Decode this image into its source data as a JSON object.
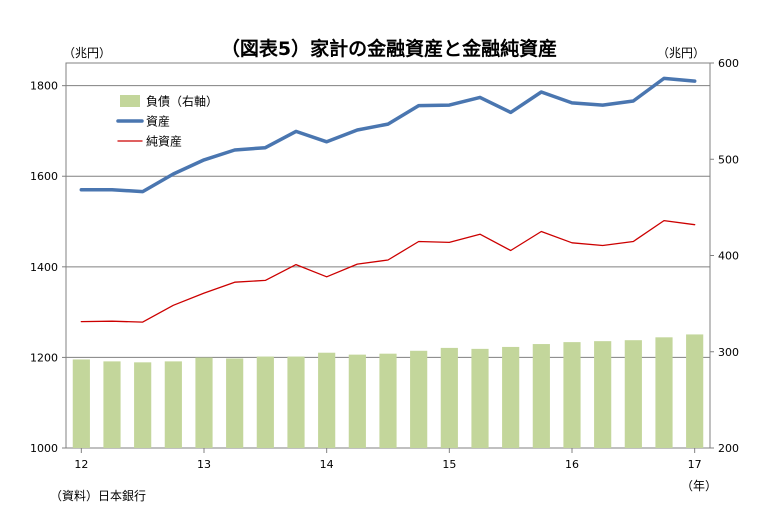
{
  "chart_data": {
    "type": "bar+line",
    "title": "（図表5）家計の金融資産と金融純資産",
    "left_unit": "（兆円）",
    "right_unit": "（兆円）",
    "source": "（資料）日本銀行",
    "x_unit": "（年）",
    "x_tick_labels": [
      "12",
      "13",
      "14",
      "15",
      "16",
      "17"
    ],
    "left_axis": {
      "min": 1000,
      "max": 1850,
      "ticks": [
        1000,
        1200,
        1400,
        1600,
        1800
      ]
    },
    "right_axis": {
      "min": 200,
      "max": 600,
      "ticks": [
        200,
        300,
        400,
        500,
        600
      ]
    },
    "series": [
      {
        "name": "負債（右軸）",
        "type": "bar",
        "axis": "right",
        "color": "#c3d69b",
        "values": [
          292,
          290,
          289,
          290,
          294,
          293,
          295,
          295,
          299,
          297,
          298,
          301,
          304,
          303,
          305,
          308,
          310,
          311,
          312,
          315,
          318
        ]
      },
      {
        "name": "資産",
        "type": "line",
        "axis": "left",
        "color": "#4a76b0",
        "width": 3.5,
        "values": [
          1570,
          1570,
          1566,
          1605,
          1636,
          1658,
          1663,
          1699,
          1676,
          1702,
          1715,
          1756,
          1757,
          1774,
          1741,
          1786,
          1762,
          1757,
          1766,
          1816,
          1810
        ]
      },
      {
        "name": "純資産",
        "type": "line",
        "axis": "left",
        "color": "#cc0000",
        "width": 1.3,
        "values": [
          1279,
          1280,
          1278,
          1315,
          1342,
          1366,
          1370,
          1405,
          1378,
          1406,
          1415,
          1456,
          1454,
          1472,
          1436,
          1478,
          1453,
          1447,
          1456,
          1502,
          1493
        ]
      }
    ]
  }
}
